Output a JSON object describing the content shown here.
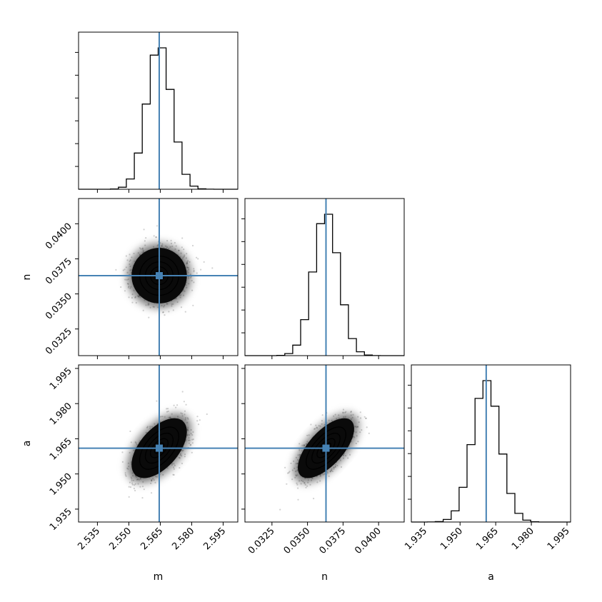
{
  "chart_data": {
    "type": "corner",
    "parameters": [
      {
        "label": "m",
        "range": [
          2.526,
          2.602
        ],
        "ticks": [
          "2.535",
          "2.550",
          "2.565",
          "2.580",
          "2.595"
        ],
        "truth": 2.5645,
        "mean": 2.5645,
        "sigma": 0.006
      },
      {
        "label": "n",
        "range": [
          0.0306,
          0.0418
        ],
        "ticks": [
          "0.0325",
          "0.0350",
          "0.0375",
          "0.0400"
        ],
        "truth": 0.0363,
        "mean": 0.0363,
        "sigma": 0.0009
      },
      {
        "label": "a",
        "range": [
          1.9295,
          1.9965
        ],
        "ticks": [
          "1.935",
          "1.950",
          "1.965",
          "1.980",
          "1.995"
        ],
        "truth": 1.961,
        "mean": 1.961,
        "sigma": 0.0058
      }
    ],
    "correlations": {
      "m-n": 0.0,
      "m-a": 0.55,
      "n-a": 0.65
    },
    "truth_color": "#4682b4",
    "histogram_color": "#000000",
    "grid": false
  }
}
